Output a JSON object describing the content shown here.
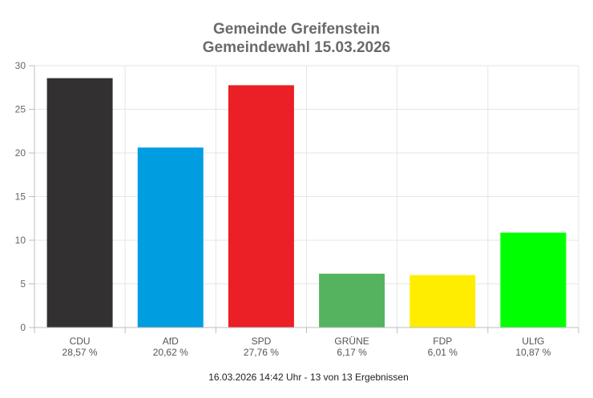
{
  "chart_data": {
    "type": "bar",
    "title": "Gemeinde Greifenstein",
    "subtitle": "Gemeindewahl 15.03.2026",
    "categories": [
      "CDU",
      "AfD",
      "SPD",
      "GRÜNE",
      "FDP",
      "ULfG"
    ],
    "values": [
      28.57,
      20.62,
      27.76,
      6.17,
      6.01,
      10.87
    ],
    "value_labels": [
      "28,57 %",
      "20,62 %",
      "27,76 %",
      "6,17 %",
      "6,01 %",
      "10,87 %"
    ],
    "colors": [
      "#333031",
      "#009ee0",
      "#eb1f26",
      "#55b35f",
      "#ffed00",
      "#00ff00"
    ],
    "y_ticks": [
      "0",
      "5",
      "10",
      "15",
      "20",
      "25",
      "30"
    ],
    "ylim": [
      0,
      30
    ],
    "xlabel": "",
    "ylabel": "",
    "grid": true,
    "legend": "none",
    "footer": "16.03.2026 14:42 Uhr - 13 von 13 Ergebnissen"
  }
}
